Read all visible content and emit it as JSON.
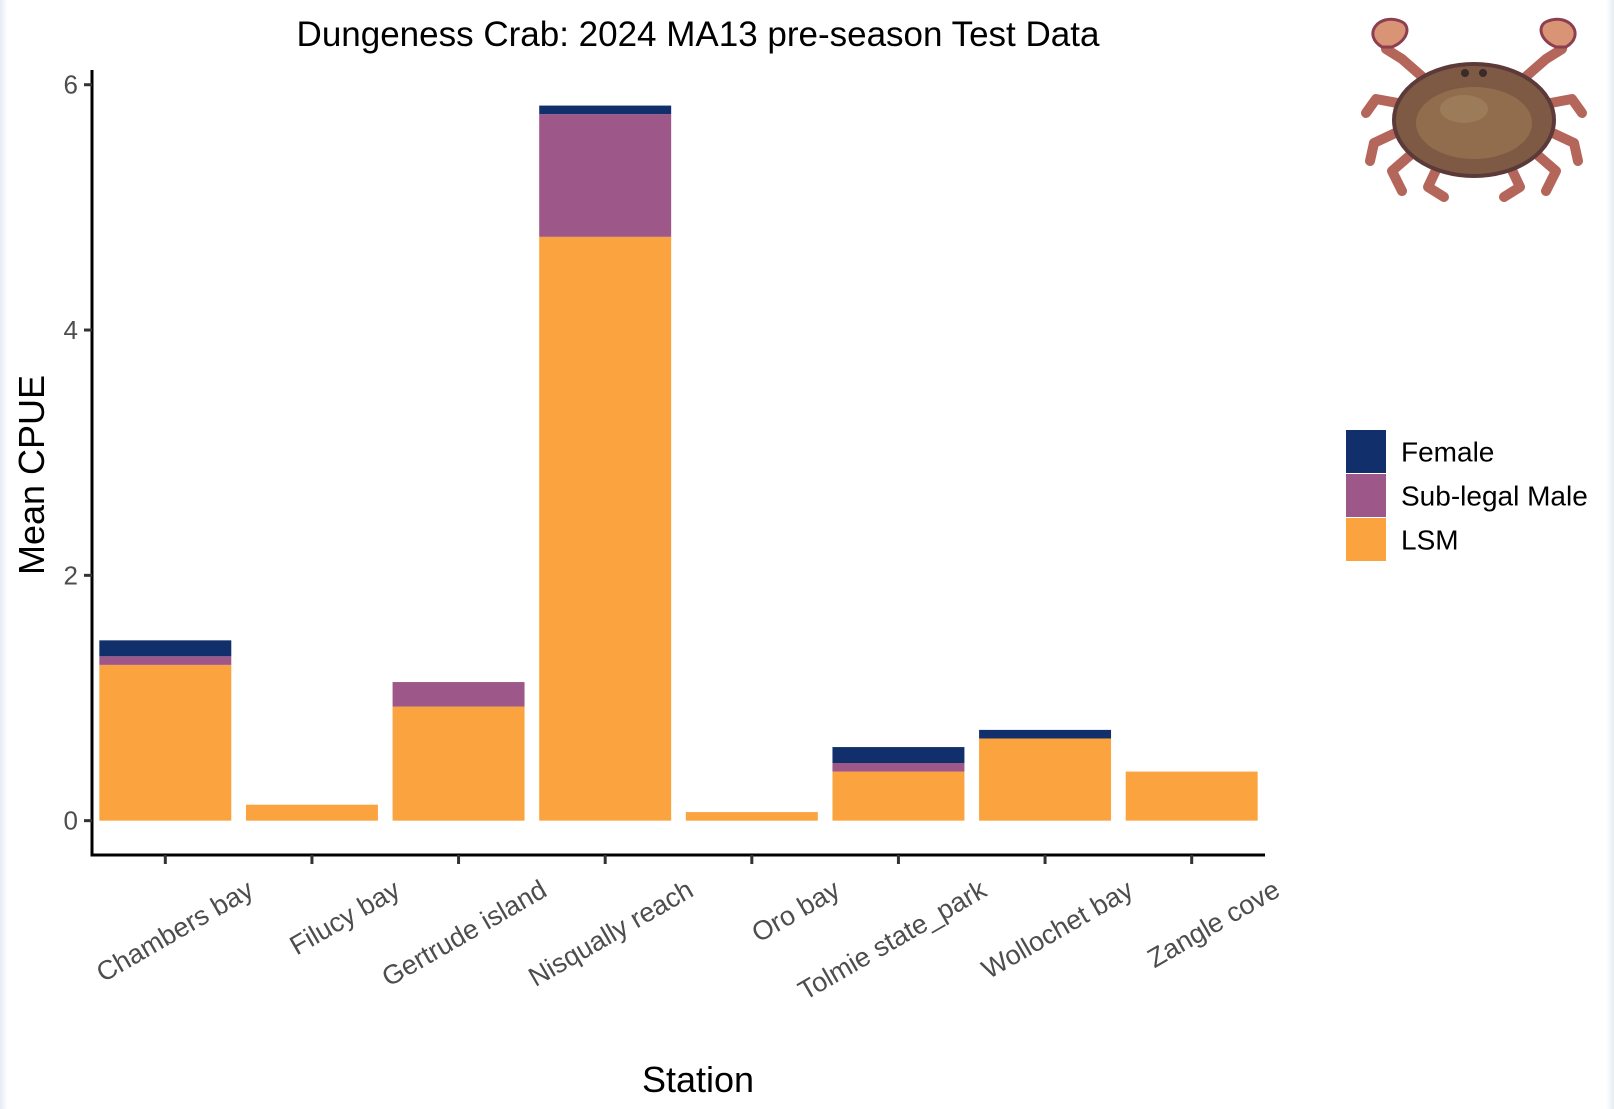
{
  "chart_data": {
    "type": "bar",
    "stacked": true,
    "title": "Dungeness Crab: 2024 MA13 pre-season Test Data",
    "xlabel": "Station",
    "ylabel": "Mean CPUE",
    "ylim": [
      -0.28,
      6.12
    ],
    "yticks": [
      0,
      2,
      4,
      6
    ],
    "grid": false,
    "legend_position": "right",
    "categories": [
      "Chambers bay",
      "Filucy bay",
      "Gertrude island",
      "Nisqually reach",
      "Oro bay",
      "Tolmie state_park",
      "Wollochet bay",
      "Zangle cove"
    ],
    "series": [
      {
        "name": "LSM",
        "color": "#fba33e",
        "values": [
          1.27,
          0.13,
          0.93,
          4.76,
          0.07,
          0.4,
          0.67,
          0.4
        ]
      },
      {
        "name": "Sub-legal Male",
        "color": "#9e5789",
        "values": [
          0.07,
          0.0,
          0.2,
          1.0,
          0.0,
          0.07,
          0.0,
          0.0
        ]
      },
      {
        "name": "Female",
        "color": "#11306b",
        "values": [
          0.13,
          0.0,
          0.0,
          0.07,
          0.0,
          0.13,
          0.07,
          0.0
        ]
      }
    ],
    "legend_order": [
      "Female",
      "Sub-legal Male",
      "LSM"
    ]
  },
  "decoration": {
    "image_icon": "dungeness-crab-photo"
  }
}
